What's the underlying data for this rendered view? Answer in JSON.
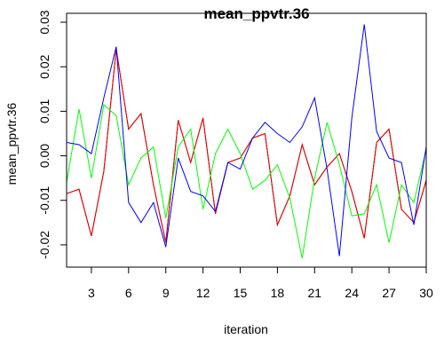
{
  "chart_data": {
    "type": "line",
    "title": "mean_ppvtr.36",
    "xlabel": "iteration",
    "ylabel": "mean_ppvtr.36",
    "xlim": [
      1,
      30
    ],
    "ylim": [
      -0.025,
      0.032
    ],
    "x_ticks": [
      3,
      6,
      9,
      12,
      15,
      18,
      21,
      24,
      27,
      30
    ],
    "y_ticks": [
      -0.02,
      -0.01,
      0.0,
      0.01,
      0.02,
      0.03
    ],
    "y_tick_labels": [
      "-0.02",
      "-0.01",
      "0.00",
      "0.01",
      "0.02",
      "0.03"
    ],
    "x": [
      1,
      2,
      3,
      4,
      5,
      6,
      7,
      8,
      9,
      10,
      11,
      12,
      13,
      14,
      15,
      16,
      17,
      18,
      19,
      20,
      21,
      22,
      23,
      24,
      25,
      26,
      27,
      28,
      29,
      30
    ],
    "series": [
      {
        "color": "#000000",
        "values": [
          -0.0085,
          -0.0075,
          -0.018,
          -0.0035,
          0.024,
          0.006,
          0.0095,
          -0.0065,
          -0.0195,
          0.008,
          -0.0015,
          0.0085,
          -0.013,
          -0.0015,
          -0.0005,
          0.004,
          0.005,
          -0.0155,
          -0.009,
          0.0025,
          -0.0065,
          -0.0025,
          0.0005,
          -0.008,
          -0.0185,
          0.003,
          0.006,
          -0.012,
          -0.015,
          -0.0055
        ]
      },
      {
        "color": "#ff0000",
        "values": [
          -0.0085,
          -0.0075,
          -0.018,
          -0.0035,
          0.024,
          0.006,
          0.0095,
          -0.0065,
          -0.0195,
          0.008,
          -0.0015,
          0.0085,
          -0.013,
          -0.0015,
          -0.0005,
          0.004,
          0.005,
          -0.0155,
          -0.009,
          0.0025,
          -0.0065,
          -0.0025,
          0.0005,
          -0.008,
          -0.0185,
          0.003,
          0.006,
          -0.012,
          -0.015,
          -0.0055
        ]
      },
      {
        "color": "#00ff00",
        "values": [
          -0.006,
          0.0105,
          -0.005,
          0.0115,
          0.009,
          -0.0065,
          -0.0005,
          0.002,
          -0.014,
          0.002,
          0.006,
          -0.012,
          0.0005,
          0.006,
          0.0005,
          -0.0075,
          -0.0055,
          -0.002,
          -0.0095,
          -0.023,
          -0.005,
          0.0075,
          -0.002,
          -0.0135,
          -0.013,
          -0.0065,
          -0.0195,
          -0.0065,
          -0.0105,
          0.0015
        ]
      },
      {
        "color": "#0000ff",
        "values": [
          0.003,
          0.0025,
          0.0005,
          0.013,
          0.0245,
          -0.0105,
          -0.015,
          -0.0105,
          -0.0205,
          -0.0005,
          -0.008,
          -0.009,
          -0.0125,
          -0.0015,
          -0.003,
          0.004,
          0.0075,
          0.005,
          0.003,
          0.0065,
          0.013,
          -0.003,
          -0.0225,
          0.0085,
          0.0295,
          0.0055,
          -0.0005,
          -0.0015,
          -0.0155,
          0.002
        ]
      }
    ]
  }
}
